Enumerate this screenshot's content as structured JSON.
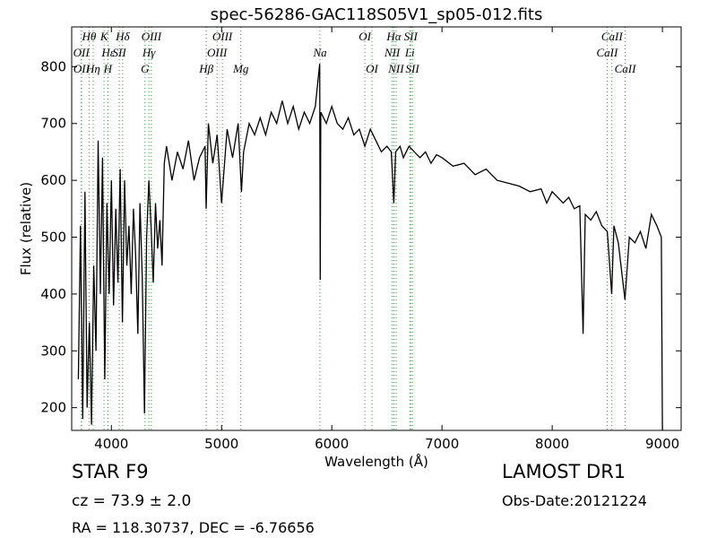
{
  "chart_data": {
    "type": "line",
    "title": "spec-56286-GAC118S05V1_sp05-012.fits",
    "x_label": "Wavelength (Å)",
    "y_label": "Flux (relative)",
    "xlim": [
      3640,
      9170
    ],
    "ylim": [
      160,
      870
    ],
    "xticks": [
      4000,
      5000,
      6000,
      7000,
      8000,
      9000
    ],
    "yticks": [
      200,
      300,
      400,
      500,
      600,
      700,
      800
    ],
    "color": "#000000",
    "line_color": "#2ca02c",
    "x": [
      3700,
      3720,
      3740,
      3760,
      3780,
      3800,
      3820,
      3840,
      3860,
      3880,
      3900,
      3920,
      3940,
      3960,
      3980,
      4000,
      4020,
      4040,
      4060,
      4080,
      4100,
      4120,
      4140,
      4160,
      4180,
      4200,
      4220,
      4240,
      4260,
      4280,
      4300,
      4320,
      4340,
      4360,
      4380,
      4400,
      4420,
      4440,
      4460,
      4480,
      4500,
      4550,
      4600,
      4650,
      4700,
      4750,
      4800,
      4850,
      4860,
      4880,
      4920,
      4960,
      5000,
      5050,
      5100,
      5150,
      5180,
      5200,
      5250,
      5300,
      5350,
      5400,
      5450,
      5500,
      5550,
      5600,
      5650,
      5700,
      5750,
      5800,
      5850,
      5890,
      5895,
      5900,
      5950,
      6000,
      6050,
      6100,
      6150,
      6200,
      6250,
      6300,
      6350,
      6400,
      6450,
      6500,
      6540,
      6563,
      6580,
      6620,
      6650,
      6700,
      6750,
      6800,
      6850,
      6900,
      6950,
      7000,
      7100,
      7200,
      7300,
      7400,
      7500,
      7600,
      7700,
      7800,
      7900,
      7950,
      8000,
      8100,
      8150,
      8200,
      8250,
      8280,
      8300,
      8350,
      8400,
      8450,
      8500,
      8540,
      8560,
      8600,
      8660,
      8700,
      8750,
      8800,
      8850,
      8900,
      8950,
      8990,
      9000
    ],
    "values": [
      250,
      520,
      180,
      580,
      200,
      350,
      170,
      450,
      300,
      670,
      400,
      640,
      250,
      560,
      400,
      600,
      380,
      550,
      420,
      620,
      350,
      600,
      450,
      520,
      400,
      550,
      470,
      330,
      560,
      430,
      190,
      500,
      600,
      520,
      420,
      560,
      480,
      530,
      450,
      630,
      660,
      600,
      650,
      620,
      670,
      600,
      640,
      660,
      550,
      700,
      630,
      680,
      560,
      690,
      640,
      700,
      580,
      650,
      700,
      680,
      710,
      680,
      720,
      700,
      740,
      700,
      730,
      690,
      720,
      700,
      730,
      805,
      425,
      720,
      700,
      730,
      700,
      690,
      710,
      680,
      690,
      660,
      690,
      670,
      650,
      660,
      650,
      560,
      650,
      660,
      640,
      660,
      650,
      640,
      650,
      630,
      645,
      640,
      625,
      630,
      610,
      620,
      600,
      595,
      590,
      580,
      585,
      560,
      580,
      560,
      570,
      550,
      555,
      330,
      540,
      530,
      545,
      520,
      510,
      400,
      520,
      490,
      390,
      500,
      490,
      510,
      480,
      540,
      520,
      500,
      160
    ],
    "annotation_rows": [
      [
        {
          "x": 3798,
          "label": "Hθ"
        },
        {
          "x": 3934,
          "label": "K"
        },
        {
          "x": 4102,
          "label": "Hδ"
        },
        {
          "x": 4363,
          "label": "OIII"
        },
        {
          "x": 5007,
          "label": "OIII"
        },
        {
          "x": 6300,
          "label": "OI"
        },
        {
          "x": 6563,
          "label": "Hα"
        },
        {
          "x": 6716,
          "label": "SII"
        },
        {
          "x": 8542,
          "label": "CaII"
        }
      ],
      [
        {
          "x": 3727,
          "label": "OII"
        },
        {
          "x": 3970,
          "label": "Hε"
        },
        {
          "x": 4072,
          "label": "SII"
        },
        {
          "x": 4340,
          "label": "Hγ"
        },
        {
          "x": 4959,
          "label": "OIII"
        },
        {
          "x": 5893,
          "label": "Na"
        },
        {
          "x": 6548,
          "label": "NII"
        },
        {
          "x": 6708,
          "label": "Li"
        },
        {
          "x": 8498,
          "label": "CaII"
        }
      ],
      [
        {
          "x": 3729,
          "label": "OII"
        },
        {
          "x": 3835,
          "label": "Hη"
        },
        {
          "x": 3968,
          "label": "H"
        },
        {
          "x": 4305,
          "label": "G"
        },
        {
          "x": 4861,
          "label": "Hβ"
        },
        {
          "x": 5175,
          "label": "Mg"
        },
        {
          "x": 6364,
          "label": "OI"
        },
        {
          "x": 6583,
          "label": "NII"
        },
        {
          "x": 6731,
          "label": "SII"
        },
        {
          "x": 8662,
          "label": "CaII"
        }
      ]
    ],
    "footer": {
      "object": "STAR   F9",
      "redshift": "cz = 73.9  ± 2.0",
      "coords": "RA = 118.30737, DEC = -6.76656",
      "survey": "LAMOST DR1",
      "date": "Obs-Date:20121224"
    }
  }
}
